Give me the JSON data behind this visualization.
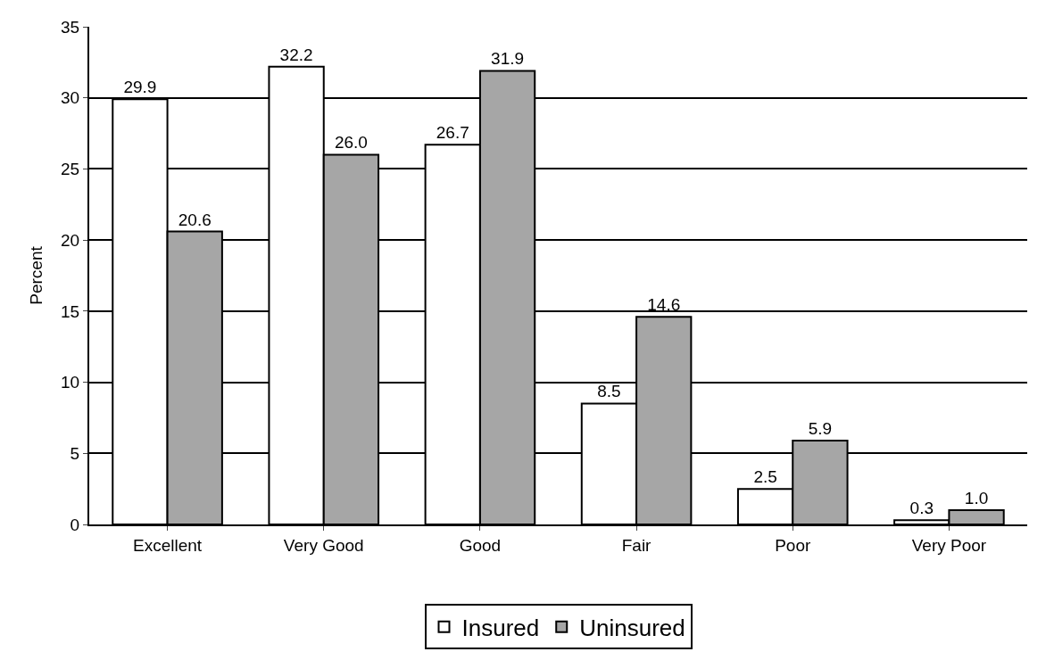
{
  "chart_data": {
    "type": "bar",
    "ylabel": "Percent",
    "categories": [
      "Excellent",
      "Very Good",
      "Good",
      "Fair",
      "Poor",
      "Very Poor"
    ],
    "series": [
      {
        "name": "Insured",
        "color": "#ffffff",
        "values": [
          29.9,
          32.2,
          26.7,
          8.5,
          2.5,
          0.3
        ],
        "value_labels": [
          "29.9",
          "32.2",
          "26.7",
          "8.5",
          "2.5",
          "0.3"
        ]
      },
      {
        "name": "Uninsured",
        "color": "#a6a6a6",
        "values": [
          20.6,
          26.0,
          31.9,
          14.6,
          5.9,
          1.0
        ],
        "value_labels": [
          "20.6",
          "26.0",
          "31.9",
          "14.6",
          "5.9",
          "1.0"
        ]
      }
    ],
    "ylim": [
      0,
      35
    ],
    "yticks": [
      0,
      5,
      10,
      15,
      20,
      25,
      30,
      35
    ],
    "grid": "y",
    "legend": "bottom"
  }
}
